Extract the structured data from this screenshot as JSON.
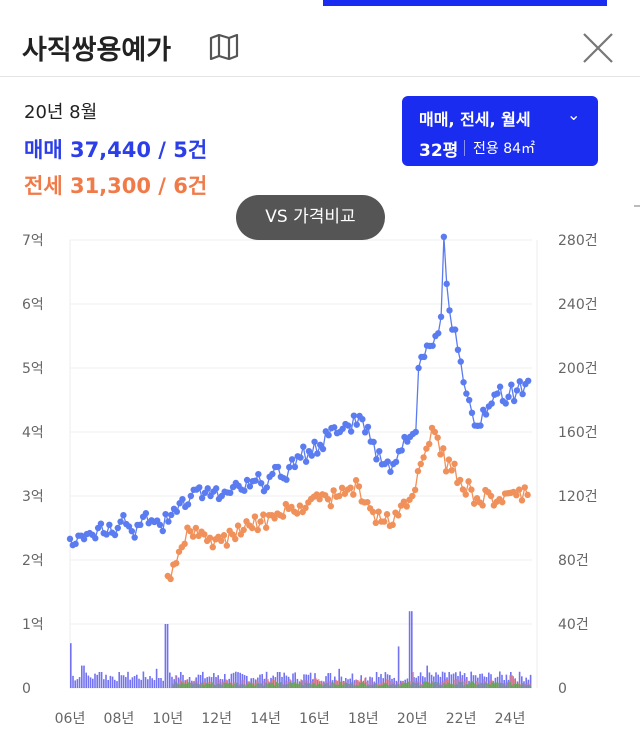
{
  "header": {
    "title": "사직쌍용예가",
    "map_icon": "map-icon",
    "close_icon": "close-icon"
  },
  "summary": {
    "period": "20년 8월",
    "sale": "매매 37,440 / 5건",
    "jeonse": "전세 31,300 / 6건"
  },
  "filter": {
    "types": "매매, 전세, 월세",
    "chevron": "⌄",
    "pyeong": "32평",
    "area": "전용 84㎡"
  },
  "compare_button": "VS 가격비교",
  "colors": {
    "sale": "#5b7cf0",
    "jeonse": "#f0905a",
    "vol_sale": "#5a5af0",
    "vol_jeonse": "#f07a7a",
    "vol_wolse": "#4caf50",
    "accent": "#1a2cf0"
  },
  "chart_data": {
    "type": "line",
    "price_axis": {
      "unit": "억",
      "ylim": [
        0,
        7
      ],
      "ticks": [
        "0",
        "1억",
        "2억",
        "3억",
        "4억",
        "5억",
        "6억",
        "7억"
      ]
    },
    "volume_axis": {
      "unit": "건",
      "ylim": [
        0,
        280
      ],
      "ticks": [
        "0",
        "40건",
        "80건",
        "120건",
        "160건",
        "200건",
        "240건",
        "280건"
      ]
    },
    "x_ticks": [
      "06년",
      "08년",
      "10년",
      "12년",
      "14년",
      "16년",
      "18년",
      "20년",
      "22년",
      "24년"
    ],
    "x_tick_years": [
      2006,
      2008,
      2010,
      2012,
      2014,
      2016,
      2018,
      2020,
      2022,
      2024
    ],
    "grid": true,
    "series": [
      {
        "name": "매매",
        "points": [
          [
            2006.0,
            2.33
          ],
          [
            2006.4,
            2.38
          ],
          [
            2006.8,
            2.42
          ],
          [
            2007.2,
            2.5
          ],
          [
            2007.6,
            2.55
          ],
          [
            2008.0,
            2.5
          ],
          [
            2008.2,
            2.7
          ],
          [
            2008.5,
            2.45
          ],
          [
            2008.9,
            2.55
          ],
          [
            2009.3,
            2.62
          ],
          [
            2009.7,
            2.55
          ],
          [
            2010.0,
            2.6
          ],
          [
            2010.3,
            2.8
          ],
          [
            2010.6,
            2.95
          ],
          [
            2010.9,
            3.0
          ],
          [
            2011.2,
            3.1
          ],
          [
            2011.5,
            3.05
          ],
          [
            2011.8,
            3.0
          ],
          [
            2012.2,
            3.0
          ],
          [
            2012.6,
            3.05
          ],
          [
            2013.0,
            3.1
          ],
          [
            2013.4,
            3.15
          ],
          [
            2013.8,
            3.2
          ],
          [
            2014.2,
            3.3
          ],
          [
            2014.6,
            3.3
          ],
          [
            2015.0,
            3.45
          ],
          [
            2015.4,
            3.6
          ],
          [
            2015.8,
            3.7
          ],
          [
            2016.2,
            3.8
          ],
          [
            2016.6,
            3.95
          ],
          [
            2017.0,
            4.0
          ],
          [
            2017.4,
            4.1
          ],
          [
            2017.8,
            4.25
          ],
          [
            2018.0,
            4.2
          ],
          [
            2018.3,
            3.85
          ],
          [
            2018.6,
            3.7
          ],
          [
            2018.9,
            3.5
          ],
          [
            2019.2,
            3.5
          ],
          [
            2019.5,
            3.7
          ],
          [
            2019.8,
            3.85
          ],
          [
            2020.1,
            4.0
          ],
          [
            2020.3,
            5.0
          ],
          [
            2020.6,
            5.35
          ],
          [
            2020.9,
            5.5
          ],
          [
            2021.2,
            5.8
          ],
          [
            2021.3,
            7.05
          ],
          [
            2021.5,
            5.9
          ],
          [
            2021.7,
            5.6
          ],
          [
            2022.0,
            5.1
          ],
          [
            2022.2,
            4.6
          ],
          [
            2022.5,
            4.3
          ],
          [
            2022.8,
            4.1
          ],
          [
            2023.1,
            4.4
          ],
          [
            2023.5,
            4.6
          ],
          [
            2023.9,
            4.55
          ],
          [
            2024.3,
            4.65
          ],
          [
            2024.7,
            4.8
          ],
          [
            2024.8,
            4.6
          ]
        ]
      },
      {
        "name": "전세",
        "points": [
          [
            2010.0,
            1.75
          ],
          [
            2010.3,
            1.95
          ],
          [
            2010.6,
            2.2
          ],
          [
            2010.9,
            2.45
          ],
          [
            2011.2,
            2.5
          ],
          [
            2011.5,
            2.4
          ],
          [
            2011.8,
            2.2
          ],
          [
            2012.2,
            2.3
          ],
          [
            2012.6,
            2.4
          ],
          [
            2013.0,
            2.4
          ],
          [
            2013.4,
            2.5
          ],
          [
            2013.8,
            2.6
          ],
          [
            2014.2,
            2.7
          ],
          [
            2014.6,
            2.7
          ],
          [
            2015.0,
            2.8
          ],
          [
            2015.4,
            2.85
          ],
          [
            2015.8,
            2.9
          ],
          [
            2016.2,
            2.95
          ],
          [
            2016.6,
            2.95
          ],
          [
            2017.0,
            3.0
          ],
          [
            2017.4,
            3.1
          ],
          [
            2017.8,
            3.15
          ],
          [
            2018.0,
            2.9
          ],
          [
            2018.4,
            2.75
          ],
          [
            2018.8,
            2.6
          ],
          [
            2019.2,
            2.55
          ],
          [
            2019.6,
            2.85
          ],
          [
            2020.0,
            3.0
          ],
          [
            2020.3,
            3.5
          ],
          [
            2020.6,
            3.74
          ],
          [
            2020.9,
            4.0
          ],
          [
            2021.2,
            3.65
          ],
          [
            2021.6,
            3.4
          ],
          [
            2022.0,
            3.25
          ],
          [
            2022.4,
            3.1
          ],
          [
            2022.8,
            2.9
          ],
          [
            2023.2,
            3.0
          ],
          [
            2023.6,
            2.95
          ],
          [
            2024.0,
            3.05
          ],
          [
            2024.4,
            3.1
          ],
          [
            2024.8,
            3.0
          ]
        ]
      }
    ],
    "volume_series": [
      {
        "name": "매매 거래량",
        "peaks": [
          [
            2006.0,
            28
          ],
          [
            2006.5,
            14
          ],
          [
            2007.2,
            10
          ],
          [
            2008.1,
            8
          ],
          [
            2009.5,
            12
          ],
          [
            2009.9,
            40
          ],
          [
            2010.5,
            10
          ],
          [
            2012.0,
            8
          ],
          [
            2014.5,
            10
          ],
          [
            2017.0,
            12
          ],
          [
            2018.5,
            10
          ],
          [
            2019.4,
            26
          ],
          [
            2019.9,
            48
          ],
          [
            2020.6,
            14
          ],
          [
            2021.5,
            10
          ],
          [
            2022.5,
            8
          ],
          [
            2024.0,
            10
          ]
        ]
      },
      {
        "name": "전세 거래량",
        "peaks": [
          [
            2010.3,
            8
          ],
          [
            2012.0,
            6
          ],
          [
            2014.0,
            6
          ],
          [
            2016.0,
            6
          ],
          [
            2018.0,
            6
          ],
          [
            2020.0,
            10
          ],
          [
            2022.0,
            6
          ],
          [
            2024.0,
            8
          ]
        ]
      },
      {
        "name": "월세 거래량",
        "peaks": [
          [
            2010.3,
            4
          ],
          [
            2012.5,
            3
          ],
          [
            2014.5,
            3
          ],
          [
            2016.5,
            3
          ],
          [
            2018.5,
            3
          ],
          [
            2020.5,
            4
          ],
          [
            2022.5,
            3
          ],
          [
            2024.5,
            3
          ]
        ]
      }
    ]
  }
}
